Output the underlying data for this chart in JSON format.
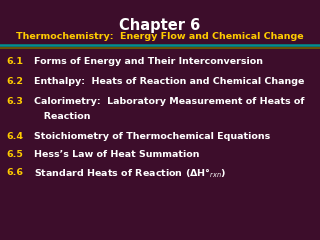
{
  "title": "Chapter 6",
  "subtitle": "Thermochemistry:  Energy Flow and Chemical Change",
  "background_color": "#3d0d2b",
  "title_color": "#ffffff",
  "subtitle_color": "#ffcc00",
  "sep_color_top": "#009090",
  "sep_color_bottom": "#706000",
  "items": [
    {
      "number": "6.1",
      "text": "Forms of Energy and Their Interconversion"
    },
    {
      "number": "6.2",
      "text": "Enthalpy:  Heats of Reaction and Chemical Change"
    },
    {
      "number": "6.3",
      "text": "Calorimetry:  Laboratory Measurement of Heats of"
    },
    {
      "number": "",
      "text": "   Reaction"
    },
    {
      "number": "6.4",
      "text": "Stoichiometry of Thermochemical Equations"
    },
    {
      "number": "6.5",
      "text": "Hess’s Law of Heat Summation"
    },
    {
      "number": "6.6",
      "text": "Standard Heats of Reaction (ΔH°$_{rxn}$)"
    }
  ],
  "number_color": "#ffcc00",
  "item_color": "#ffffff",
  "figsize": [
    3.2,
    2.4
  ],
  "dpi": 100
}
